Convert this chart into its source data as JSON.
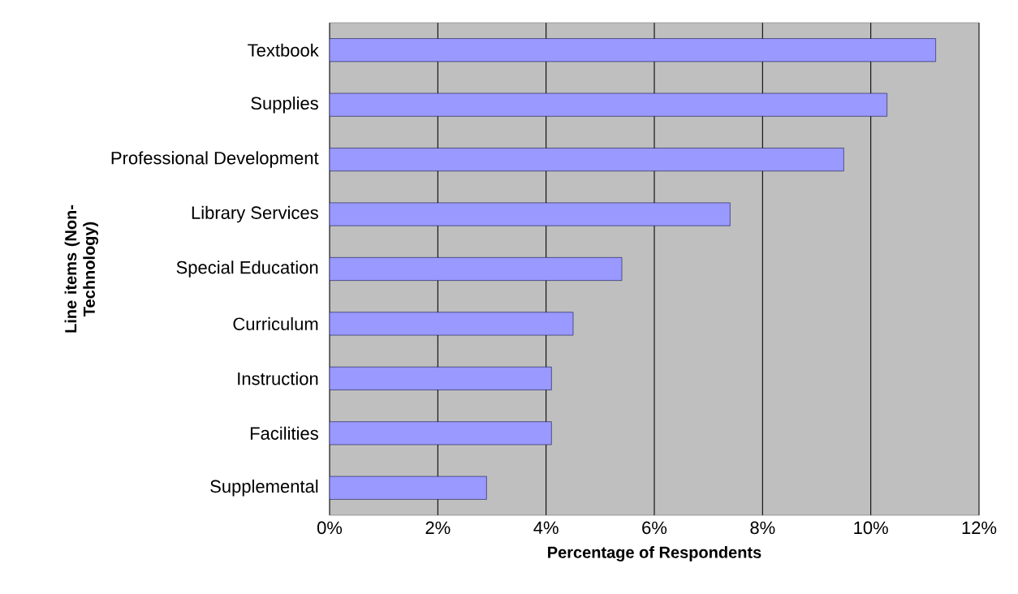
{
  "chart_data": {
    "type": "bar",
    "orientation": "horizontal",
    "xlabel": "Percentage of Respondents",
    "ylabel": "Line items (Non-Technology)",
    "categories": [
      "Textbook",
      "Supplies",
      "Professional Development",
      "Library Services",
      "Special Education",
      "Curriculum",
      "Instruction",
      "Facilities",
      "Supplemental"
    ],
    "values": [
      11.2,
      10.3,
      9.5,
      7.4,
      5.4,
      4.5,
      4.1,
      4.1,
      2.9
    ],
    "color": "#9999ff",
    "xlim": [
      0,
      12
    ],
    "xticks": [
      {
        "value": 0,
        "label": "0%"
      },
      {
        "value": 2,
        "label": "2%"
      },
      {
        "value": 4,
        "label": "4%"
      },
      {
        "value": 6,
        "label": "6%"
      },
      {
        "value": 8,
        "label": "8%"
      },
      {
        "value": 10,
        "label": "10%"
      },
      {
        "value": 12,
        "label": "12%"
      }
    ],
    "grid": "x"
  }
}
